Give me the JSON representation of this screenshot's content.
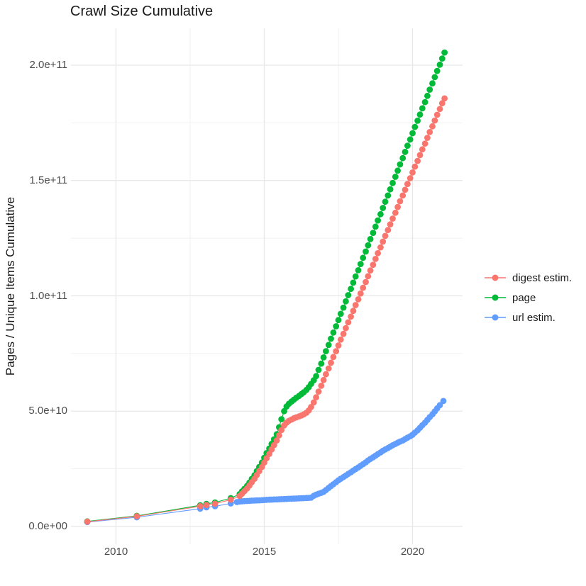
{
  "page": {
    "background": "#FFFFFF"
  },
  "chart": {
    "title": "Crawl Size Cumulative",
    "y_axis_title": "Pages / Unique Items Cumulative"
  },
  "chart_data": {
    "type": "line",
    "mark": "point+line",
    "title": "Crawl Size Cumulative",
    "xlabel": "",
    "ylabel": "Pages / Unique Items Cumulative",
    "grid": true,
    "legend_position": "right",
    "value_unit": "billions (1e9) of pages / unique items, cumulative",
    "xlim": [
      2008.5,
      2021.7
    ],
    "ylim_e9": [
      0,
      215
    ],
    "x_ticks": [
      {
        "value": 2010,
        "label": "2010"
      },
      {
        "value": 2015,
        "label": "2015"
      },
      {
        "value": 2020,
        "label": "2020"
      }
    ],
    "x_minor_gridlines": [
      2012.5,
      2017.5
    ],
    "y_ticks": [
      {
        "value": 0,
        "label": "0.0e+00"
      },
      {
        "value": 50,
        "label": "5.0e+10"
      },
      {
        "value": 100,
        "label": "1.0e+11"
      },
      {
        "value": 150,
        "label": "1.5e+11"
      },
      {
        "value": 200,
        "label": "2.0e+11"
      }
    ],
    "y_minor_gridlines": [
      25,
      75,
      125,
      175
    ],
    "legend": {
      "items": [
        {
          "id": "digest-estim",
          "label": "digest estim.",
          "color": "#F8766D"
        },
        {
          "id": "page",
          "label": "page",
          "color": "#00BA38"
        },
        {
          "id": "url-estim",
          "label": "url estim.",
          "color": "#619CFF"
        }
      ]
    },
    "draw_order": [
      "url-estim",
      "page",
      "digest-estim"
    ],
    "series": [
      {
        "id": "digest-estim",
        "name": "digest estim.",
        "color": "#F8766D",
        "points": [
          [
            2009.03,
            2.1
          ],
          [
            2010.7,
            4.4
          ],
          [
            2012.84,
            8.8
          ],
          [
            2013.05,
            9.3
          ],
          [
            2013.34,
            9.9
          ],
          [
            2013.87,
            11.6
          ],
          [
            2014.17,
            13.2
          ],
          [
            2014.25,
            14.2
          ],
          [
            2014.33,
            15.3
          ],
          [
            2014.42,
            16.5
          ],
          [
            2014.5,
            17.8
          ],
          [
            2014.58,
            19.2
          ],
          [
            2014.67,
            20.7
          ],
          [
            2014.75,
            22.3
          ],
          [
            2014.83,
            24.0
          ],
          [
            2014.92,
            25.8
          ],
          [
            2015.0,
            27.7
          ],
          [
            2015.08,
            29.6
          ],
          [
            2015.17,
            31.5
          ],
          [
            2015.25,
            33.4
          ],
          [
            2015.33,
            35.3
          ],
          [
            2015.42,
            37.3
          ],
          [
            2015.5,
            39.5
          ],
          [
            2015.58,
            41.8
          ],
          [
            2015.67,
            43.8
          ],
          [
            2015.75,
            45.0
          ],
          [
            2015.83,
            45.8
          ],
          [
            2015.92,
            46.4
          ],
          [
            2016.0,
            46.9
          ],
          [
            2016.08,
            47.3
          ],
          [
            2016.17,
            47.7
          ],
          [
            2016.25,
            48.1
          ],
          [
            2016.33,
            48.6
          ],
          [
            2016.42,
            49.3
          ],
          [
            2016.5,
            50.3
          ],
          [
            2016.58,
            51.8
          ],
          [
            2016.67,
            53.8
          ],
          [
            2016.75,
            56.0
          ],
          [
            2016.83,
            58.5
          ],
          [
            2016.92,
            61.0
          ],
          [
            2017.0,
            63.5
          ],
          [
            2017.08,
            66.0
          ],
          [
            2017.17,
            68.5
          ],
          [
            2017.25,
            71.0
          ],
          [
            2017.33,
            73.5
          ],
          [
            2017.42,
            76.0
          ],
          [
            2017.5,
            78.5
          ],
          [
            2017.58,
            81.0
          ],
          [
            2017.67,
            83.5
          ],
          [
            2017.75,
            86.0
          ],
          [
            2017.83,
            88.5
          ],
          [
            2017.92,
            91.0
          ],
          [
            2018.0,
            93.5
          ],
          [
            2018.08,
            96.0
          ],
          [
            2018.17,
            98.5
          ],
          [
            2018.25,
            101.0
          ],
          [
            2018.33,
            103.5
          ],
          [
            2018.42,
            106.0
          ],
          [
            2018.5,
            108.5
          ],
          [
            2018.58,
            111.0
          ],
          [
            2018.67,
            113.5
          ],
          [
            2018.75,
            116.0
          ],
          [
            2018.83,
            118.5
          ],
          [
            2018.92,
            121.0
          ],
          [
            2019.0,
            123.5
          ],
          [
            2019.08,
            126.0
          ],
          [
            2019.17,
            128.5
          ],
          [
            2019.25,
            131.0
          ],
          [
            2019.33,
            133.5
          ],
          [
            2019.42,
            136.0
          ],
          [
            2019.5,
            138.5
          ],
          [
            2019.58,
            141.0
          ],
          [
            2019.67,
            143.5
          ],
          [
            2019.75,
            146.0
          ],
          [
            2019.83,
            148.5
          ],
          [
            2019.92,
            151.0
          ],
          [
            2020.0,
            153.5
          ],
          [
            2020.08,
            156.0
          ],
          [
            2020.17,
            158.5
          ],
          [
            2020.25,
            161.0
          ],
          [
            2020.33,
            163.5
          ],
          [
            2020.42,
            166.0
          ],
          [
            2020.5,
            168.5
          ],
          [
            2020.58,
            171.0
          ],
          [
            2020.67,
            173.5
          ],
          [
            2020.75,
            176.0
          ],
          [
            2020.83,
            178.5
          ],
          [
            2020.92,
            181.0
          ],
          [
            2021.0,
            183.5
          ],
          [
            2021.08,
            185.6
          ]
        ]
      },
      {
        "id": "page",
        "name": "page",
        "color": "#00BA38",
        "points": [
          [
            2009.03,
            2.2
          ],
          [
            2010.7,
            4.6
          ],
          [
            2012.84,
            9.2
          ],
          [
            2013.05,
            9.8
          ],
          [
            2013.34,
            10.4
          ],
          [
            2013.87,
            12.3
          ],
          [
            2014.17,
            14.0
          ],
          [
            2014.25,
            15.2
          ],
          [
            2014.33,
            16.3
          ],
          [
            2014.42,
            17.6
          ],
          [
            2014.5,
            19.0
          ],
          [
            2014.58,
            20.6
          ],
          [
            2014.67,
            22.2
          ],
          [
            2014.75,
            24.0
          ],
          [
            2014.83,
            25.8
          ],
          [
            2014.92,
            27.7
          ],
          [
            2015.0,
            29.8
          ],
          [
            2015.08,
            31.8
          ],
          [
            2015.17,
            33.8
          ],
          [
            2015.25,
            35.8
          ],
          [
            2015.33,
            37.8
          ],
          [
            2015.42,
            40.0
          ],
          [
            2015.5,
            43.0
          ],
          [
            2015.58,
            46.5
          ],
          [
            2015.67,
            50.0
          ],
          [
            2015.75,
            52.0
          ],
          [
            2015.83,
            53.2
          ],
          [
            2015.92,
            54.2
          ],
          [
            2016.0,
            55.0
          ],
          [
            2016.08,
            55.8
          ],
          [
            2016.17,
            56.6
          ],
          [
            2016.25,
            57.4
          ],
          [
            2016.33,
            58.2
          ],
          [
            2016.42,
            59.2
          ],
          [
            2016.5,
            60.4
          ],
          [
            2016.58,
            61.8
          ],
          [
            2016.67,
            63.4
          ],
          [
            2016.75,
            65.2
          ],
          [
            2016.83,
            67.9
          ],
          [
            2016.92,
            70.6
          ],
          [
            2017.0,
            73.3
          ],
          [
            2017.08,
            76.0
          ],
          [
            2017.17,
            78.7
          ],
          [
            2017.25,
            81.4
          ],
          [
            2017.33,
            84.1
          ],
          [
            2017.42,
            86.8
          ],
          [
            2017.5,
            89.5
          ],
          [
            2017.58,
            92.2
          ],
          [
            2017.67,
            94.9
          ],
          [
            2017.75,
            97.6
          ],
          [
            2017.83,
            100.3
          ],
          [
            2017.92,
            103.0
          ],
          [
            2018.0,
            105.7
          ],
          [
            2018.08,
            108.4
          ],
          [
            2018.17,
            111.1
          ],
          [
            2018.25,
            113.8
          ],
          [
            2018.33,
            116.5
          ],
          [
            2018.42,
            119.2
          ],
          [
            2018.5,
            121.9
          ],
          [
            2018.58,
            124.6
          ],
          [
            2018.67,
            127.3
          ],
          [
            2018.75,
            130.0
          ],
          [
            2018.83,
            132.7
          ],
          [
            2018.92,
            135.4
          ],
          [
            2019.0,
            138.1
          ],
          [
            2019.08,
            140.8
          ],
          [
            2019.17,
            143.5
          ],
          [
            2019.25,
            146.2
          ],
          [
            2019.33,
            148.9
          ],
          [
            2019.42,
            151.6
          ],
          [
            2019.5,
            154.3
          ],
          [
            2019.58,
            157.0
          ],
          [
            2019.67,
            159.7
          ],
          [
            2019.75,
            162.4
          ],
          [
            2019.83,
            165.1
          ],
          [
            2019.92,
            167.8
          ],
          [
            2020.0,
            170.5
          ],
          [
            2020.08,
            173.2
          ],
          [
            2020.17,
            175.9
          ],
          [
            2020.25,
            178.6
          ],
          [
            2020.33,
            181.3
          ],
          [
            2020.42,
            184.0
          ],
          [
            2020.5,
            186.7
          ],
          [
            2020.58,
            189.4
          ],
          [
            2020.67,
            192.1
          ],
          [
            2020.75,
            194.8
          ],
          [
            2020.83,
            197.5
          ],
          [
            2020.92,
            200.2
          ],
          [
            2021.0,
            202.9
          ],
          [
            2021.08,
            205.5
          ]
        ]
      },
      {
        "id": "url-estim",
        "name": "url estim.",
        "color": "#619CFF",
        "points": [
          [
            2009.03,
            1.9
          ],
          [
            2010.7,
            4.0
          ],
          [
            2012.84,
            7.7
          ],
          [
            2013.05,
            8.3
          ],
          [
            2013.34,
            8.8
          ],
          [
            2013.87,
            10.0
          ],
          [
            2014.08,
            10.6
          ],
          [
            2014.17,
            10.8
          ],
          [
            2014.25,
            10.9
          ],
          [
            2014.33,
            11.0
          ],
          [
            2014.42,
            11.05
          ],
          [
            2014.5,
            11.1
          ],
          [
            2014.58,
            11.2
          ],
          [
            2014.67,
            11.25
          ],
          [
            2014.75,
            11.3
          ],
          [
            2014.83,
            11.35
          ],
          [
            2014.92,
            11.4
          ],
          [
            2015.0,
            11.5
          ],
          [
            2015.08,
            11.55
          ],
          [
            2015.17,
            11.6
          ],
          [
            2015.25,
            11.65
          ],
          [
            2015.33,
            11.7
          ],
          [
            2015.42,
            11.75
          ],
          [
            2015.5,
            11.8
          ],
          [
            2015.58,
            11.85
          ],
          [
            2015.67,
            11.9
          ],
          [
            2015.75,
            11.95
          ],
          [
            2015.83,
            12.0
          ],
          [
            2015.92,
            12.05
          ],
          [
            2016.0,
            12.1
          ],
          [
            2016.08,
            12.15
          ],
          [
            2016.17,
            12.2
          ],
          [
            2016.25,
            12.25
          ],
          [
            2016.33,
            12.3
          ],
          [
            2016.42,
            12.35
          ],
          [
            2016.5,
            12.4
          ],
          [
            2016.58,
            12.5
          ],
          [
            2016.67,
            13.3
          ],
          [
            2016.75,
            13.8
          ],
          [
            2016.83,
            14.2
          ],
          [
            2016.92,
            14.6
          ],
          [
            2017.0,
            15.0
          ],
          [
            2017.08,
            15.8
          ],
          [
            2017.17,
            16.7
          ],
          [
            2017.25,
            17.5
          ],
          [
            2017.33,
            18.3
          ],
          [
            2017.42,
            19.2
          ],
          [
            2017.5,
            20.0
          ],
          [
            2017.58,
            20.7
          ],
          [
            2017.67,
            21.4
          ],
          [
            2017.75,
            22.1
          ],
          [
            2017.83,
            22.8
          ],
          [
            2017.92,
            23.5
          ],
          [
            2018.0,
            24.2
          ],
          [
            2018.08,
            24.9
          ],
          [
            2018.17,
            25.6
          ],
          [
            2018.25,
            26.3
          ],
          [
            2018.33,
            27.0
          ],
          [
            2018.42,
            27.8
          ],
          [
            2018.5,
            28.6
          ],
          [
            2018.58,
            29.3
          ],
          [
            2018.67,
            30.0
          ],
          [
            2018.75,
            30.7
          ],
          [
            2018.83,
            31.4
          ],
          [
            2018.92,
            32.1
          ],
          [
            2019.0,
            32.8
          ],
          [
            2019.08,
            33.4
          ],
          [
            2019.17,
            34.0
          ],
          [
            2019.25,
            34.6
          ],
          [
            2019.33,
            35.2
          ],
          [
            2019.42,
            35.8
          ],
          [
            2019.5,
            36.3
          ],
          [
            2019.58,
            36.8
          ],
          [
            2019.67,
            37.3
          ],
          [
            2019.75,
            37.9
          ],
          [
            2019.83,
            38.5
          ],
          [
            2019.92,
            39.1
          ],
          [
            2020.0,
            39.8
          ],
          [
            2020.08,
            40.7
          ],
          [
            2020.17,
            41.7
          ],
          [
            2020.25,
            42.8
          ],
          [
            2020.33,
            43.9
          ],
          [
            2020.42,
            45.0
          ],
          [
            2020.5,
            46.2
          ],
          [
            2020.58,
            47.4
          ],
          [
            2020.67,
            48.6
          ],
          [
            2020.75,
            49.9
          ],
          [
            2020.83,
            51.2
          ],
          [
            2020.92,
            52.6
          ],
          [
            2021.04,
            54.4
          ]
        ]
      }
    ]
  }
}
